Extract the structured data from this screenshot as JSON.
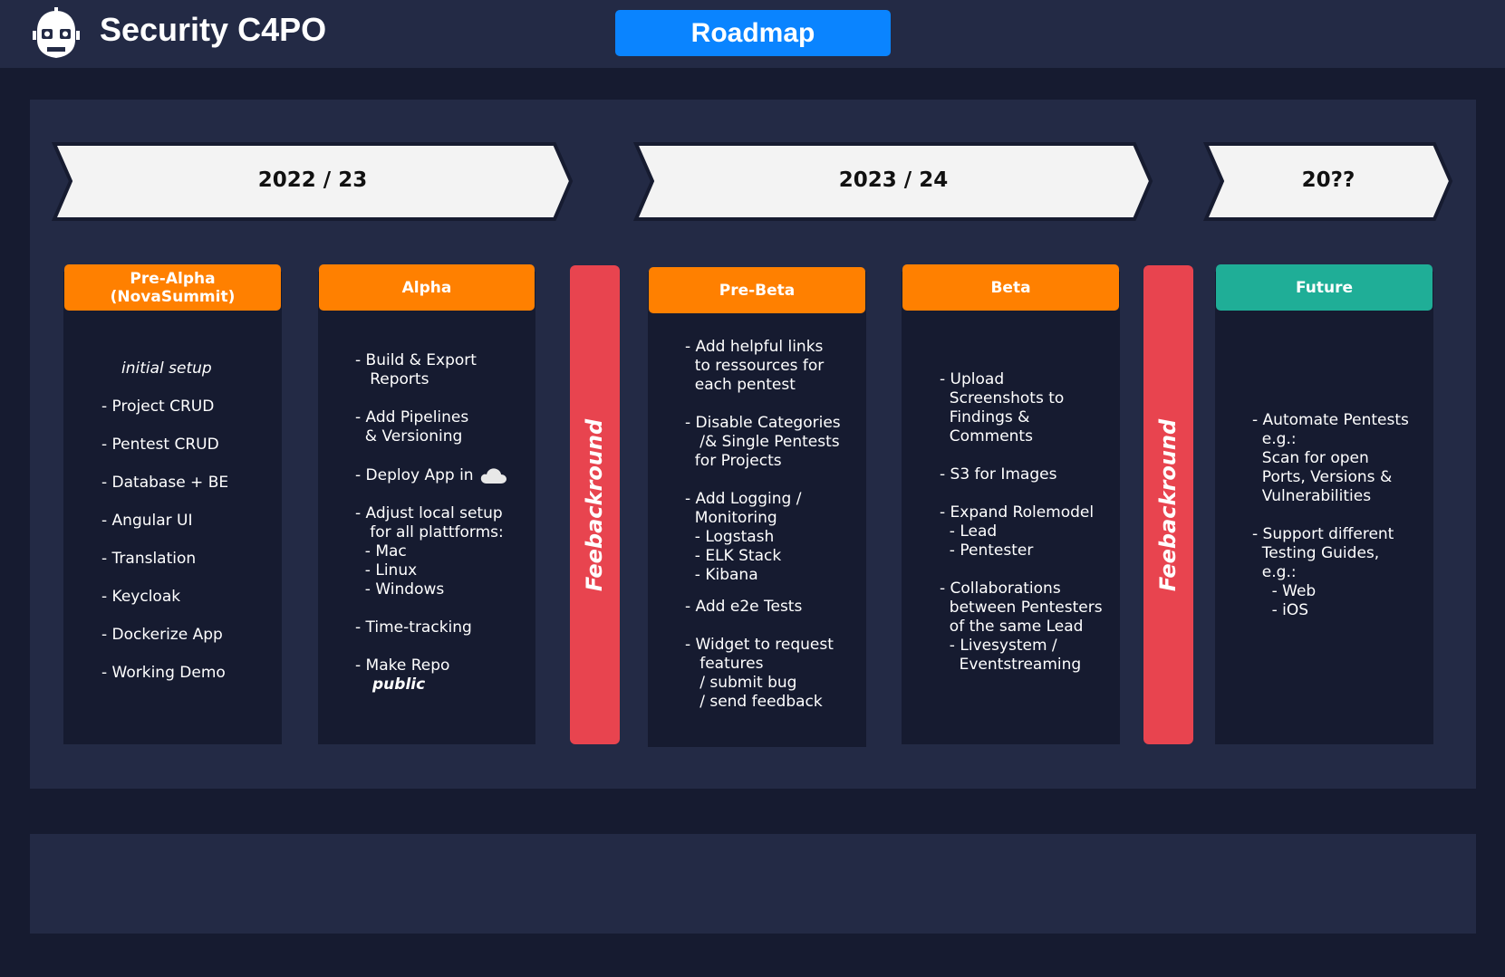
{
  "header": {
    "app_title": "Security C4PO",
    "nav_button": "Roadmap",
    "logo_icon": "robot-head-icon"
  },
  "colors": {
    "header_bg": "#232a45",
    "page_bg": "#161b30",
    "accent_blue": "#0a84ff",
    "phase_orange": "#ff8000",
    "future_teal": "#1fae97",
    "feedback_red": "#e8444f"
  },
  "periods": [
    "2022 / 23",
    "2023 / 24",
    "20??"
  ],
  "phases": [
    {
      "title": "Pre-Alpha\n(NovaSummit)",
      "subtitle": "initial setup",
      "items": [
        "- Project CRUD",
        "- Pentest CRUD",
        "- Database + BE",
        "- Angular UI",
        "- Translation",
        "- Keycloak",
        "- Dockerize App",
        "- Working Demo"
      ]
    },
    {
      "title": "Alpha",
      "items": [
        "- Build & Export\n   Reports",
        "- Add Pipelines\n  & Versioning",
        "- Deploy App in",
        "- Adjust local setup\n   for all plattforms:\n  - Mac\n  - Linux\n  - Windows",
        "- Time-tracking",
        "- Make Repo"
      ],
      "emphasis": "public",
      "cloud_icon": "cloud-icon"
    },
    {
      "title": "Pre-Beta",
      "items": [
        "- Add helpful links\n  to ressources for\n  each pentest",
        "- Disable Categories\n   /& Single Pentests\n  for Projects",
        "- Add Logging /\n  Monitoring\n  - Logstash\n  - ELK Stack\n  - Kibana",
        "- Add e2e Tests",
        "- Widget to request\n   features\n   / submit bug\n   / send feedback"
      ]
    },
    {
      "title": "Beta",
      "items": [
        "- Upload\n  Screenshots to\n  Findings &\n  Comments",
        "- S3 for Images",
        "- Expand Rolemodel\n  - Lead\n  - Pentester",
        "- Collaborations\n  between Pentesters\n  of the same Lead\n  - Livesystem /\n    Eventstreaming"
      ]
    },
    {
      "title": "Future",
      "items": [
        "- Automate Pentests\n  e.g.:\n  Scan for open\n  Ports, Versions &\n  Vulnerabilities",
        "- Support different\n  Testing Guides,\n  e.g.:\n    - Web\n    - iOS"
      ]
    }
  ],
  "feedback_label": "Feebackround"
}
